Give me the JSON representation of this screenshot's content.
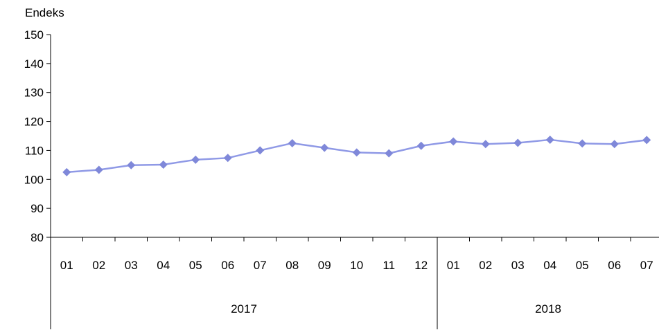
{
  "chart_data": {
    "type": "line",
    "ylabel": "Endeks",
    "ylim": [
      80,
      150
    ],
    "yticks": [
      80,
      90,
      100,
      110,
      120,
      130,
      140,
      150
    ],
    "categories": [
      "01",
      "02",
      "03",
      "04",
      "05",
      "06",
      "07",
      "08",
      "09",
      "10",
      "11",
      "12",
      "01",
      "02",
      "03",
      "04",
      "05",
      "06",
      "07"
    ],
    "groups": [
      {
        "label": "2017",
        "count": 12
      },
      {
        "label": "2018",
        "count": 7
      }
    ],
    "series": [
      {
        "values": [
          102.5,
          103.3,
          104.9,
          105.1,
          106.8,
          107.4,
          110.0,
          112.5,
          110.9,
          109.3,
          109.0,
          111.6,
          113.1,
          112.2,
          112.6,
          113.7,
          112.4,
          112.2,
          113.6
        ]
      }
    ],
    "line_color": "#8f99e6",
    "marker_color": "#7f88d9",
    "grid": false
  }
}
